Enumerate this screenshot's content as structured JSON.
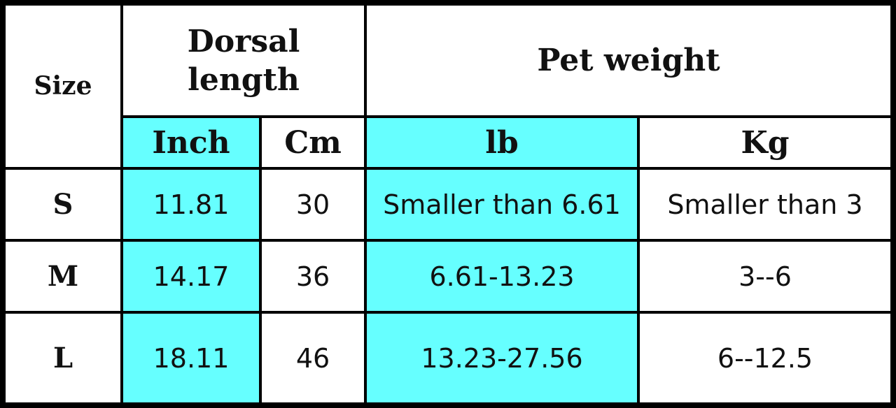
{
  "table": {
    "header": {
      "size": "Size",
      "dorsal_length": "Dorsal length",
      "pet_weight": "Pet weight",
      "units": [
        "Inch",
        "Cm",
        "lb",
        "Kg"
      ]
    },
    "rows": [
      [
        "S",
        "11.81",
        "30",
        "Smaller than 6.61",
        "Smaller than 3"
      ],
      [
        "M",
        "14.17",
        "36",
        "6.61-13.23",
        "3--6"
      ],
      [
        "L",
        "18.11",
        "46",
        "13.23-27.56",
        "6--12.5"
      ]
    ]
  }
}
